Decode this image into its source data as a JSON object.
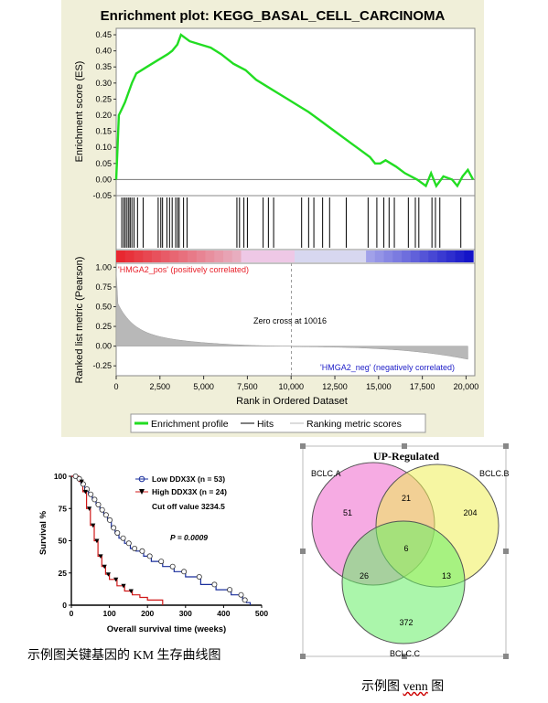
{
  "gsea": {
    "title": "Enrichment plot: KEGG_BASAL_CELL_CARCINOMA",
    "es_ylabel": "Enrichment score (ES)",
    "metric_ylabel": "Ranked list metric (Pearson)",
    "xlabel": "Rank in Ordered Dataset",
    "pos_label": "'HMGA2_pos' (positively correlated)",
    "neg_label": "'HMGA2_neg' (negatively correlated)",
    "zero_cross": "Zero cross at 10016",
    "legend": [
      "Enrichment profile",
      "Hits",
      "Ranking metric scores"
    ],
    "colors": {
      "es": "#22dd22",
      "pos": "#e8202a",
      "neg": "#2020c8",
      "metric": "#b8b8b8",
      "bg": "#f0efd9"
    }
  },
  "km": {
    "ylabel": "Survival %",
    "xlabel": "Overall survival time (weeks)",
    "legend_low": "Low  DDX3X (n = 53)",
    "legend_high": "High  DDX3X (n = 24)",
    "cutoff": "Cut off value 3234.5",
    "p_value": "P = 0.0009",
    "colors": {
      "low": "#1a2f9c",
      "high": "#d01818"
    }
  },
  "venn": {
    "title": "UP-Regulated",
    "sets": [
      "BCLC.A",
      "BCLC.B",
      "BCLC.C"
    ],
    "regions": {
      "a_only": "51",
      "b_only": "204",
      "c_only": "372",
      "ab": "21",
      "ac": "26",
      "bc": "13",
      "abc": "6"
    },
    "colors": {
      "a": "#ee66cc",
      "b": "#eeee55",
      "c": "#66ee66"
    }
  },
  "captions": {
    "km": "示例图关键基因的 KM 生存曲线图",
    "venn_prefix": "示例图  ",
    "venn_word": "venn",
    "venn_suffix": " 图"
  },
  "chart_data": [
    {
      "type": "line",
      "title": "Enrichment plot: KEGG_BASAL_CELL_CARCINOMA",
      "xlabel": "Rank in Ordered Dataset",
      "ylabel": "Enrichment score (ES)",
      "xlim": [
        0,
        20500
      ],
      "ylim": [
        -0.05,
        0.47
      ],
      "x_ticks": [
        0,
        2500,
        5000,
        7500,
        10000,
        12500,
        15000,
        17500,
        20000
      ],
      "y_ticks": [
        -0.05,
        0.0,
        0.05,
        0.1,
        0.15,
        0.2,
        0.25,
        0.3,
        0.35,
        0.4,
        0.45
      ],
      "series": [
        {
          "name": "Enrichment profile",
          "x": [
            0,
            80,
            150,
            330,
            500,
            700,
            900,
            1150,
            1450,
            1750,
            2050,
            2350,
            2650,
            2950,
            3200,
            3500,
            3700,
            4200,
            4800,
            5400,
            6000,
            6700,
            7400,
            8000,
            8600,
            9200,
            9800,
            10400,
            11000,
            11500,
            12000,
            12500,
            13000,
            13500,
            14000,
            14500,
            14800,
            15100,
            15400,
            16000,
            16500,
            17200,
            17700,
            18000,
            18300,
            18700,
            19200,
            19500,
            19800,
            20100,
            20400
          ],
          "y": [
            0.0,
            0.1,
            0.2,
            0.22,
            0.24,
            0.27,
            0.3,
            0.33,
            0.34,
            0.35,
            0.36,
            0.37,
            0.38,
            0.39,
            0.4,
            0.42,
            0.45,
            0.43,
            0.42,
            0.41,
            0.39,
            0.36,
            0.34,
            0.31,
            0.29,
            0.27,
            0.25,
            0.23,
            0.21,
            0.19,
            0.17,
            0.15,
            0.13,
            0.11,
            0.09,
            0.07,
            0.05,
            0.05,
            0.06,
            0.04,
            0.02,
            0.0,
            -0.02,
            0.02,
            -0.02,
            0.01,
            0.0,
            -0.02,
            0.01,
            0.03,
            0.0
          ]
        }
      ],
      "hits": [
        320,
        430,
        520,
        620,
        720,
        800,
        900,
        1020,
        1220,
        1540,
        2400,
        2550,
        2650,
        2900,
        3050,
        3200,
        3400,
        3510,
        3600,
        3850,
        4050,
        6900,
        7050,
        7300,
        7500,
        8400,
        8700,
        9000,
        10600,
        11000,
        11300,
        11800,
        12200,
        13150,
        14400,
        14900,
        15300,
        15600,
        15900,
        16700,
        17100,
        17300,
        18050,
        18250,
        18500,
        19700
      ],
      "metric_ticks": [
        1.0,
        0.75,
        0.5,
        0.25,
        0.0,
        -0.25
      ],
      "zero_cross": 10016
    },
    {
      "type": "line",
      "title": "",
      "xlabel": "Overall survival time (weeks)",
      "ylabel": "Survival %",
      "xlim": [
        0,
        500
      ],
      "ylim": [
        0,
        100
      ],
      "x_ticks": [
        0,
        100,
        200,
        300,
        400,
        500
      ],
      "y_ticks": [
        0,
        25,
        50,
        75,
        100
      ],
      "series": [
        {
          "name": "Low  DDX3X (n = 53)",
          "x": [
            0,
            15,
            25,
            35,
            45,
            55,
            65,
            75,
            85,
            95,
            105,
            115,
            125,
            140,
            155,
            170,
            190,
            210,
            240,
            270,
            300,
            340,
            380,
            420,
            450,
            460,
            470
          ],
          "y": [
            100,
            98,
            94,
            90,
            86,
            82,
            78,
            74,
            70,
            66,
            60,
            56,
            52,
            48,
            44,
            42,
            38,
            34,
            30,
            26,
            22,
            16,
            12,
            8,
            4,
            2,
            0
          ]
        },
        {
          "name": "High  DDX3X (n = 24)",
          "x": [
            0,
            20,
            30,
            40,
            50,
            60,
            70,
            80,
            90,
            100,
            120,
            140,
            160,
            180,
            200,
            240
          ],
          "y": [
            100,
            96,
            88,
            75,
            62,
            50,
            38,
            30,
            24,
            20,
            15,
            11,
            8,
            6,
            4,
            0
          ]
        }
      ]
    }
  ]
}
